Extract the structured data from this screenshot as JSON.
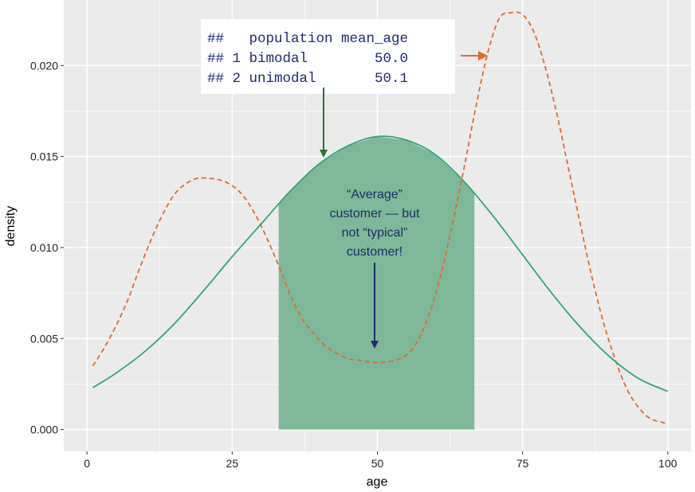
{
  "chart_data": {
    "type": "area",
    "xlabel": "age",
    "ylabel": "density",
    "xlim": [
      -4,
      104
    ],
    "ylim": [
      -0.0012,
      0.0236
    ],
    "x_ticks": [
      0,
      25,
      50,
      75,
      100
    ],
    "y_ticks": [
      0.0,
      0.005,
      0.01,
      0.015,
      0.02
    ],
    "x_tick_labels": [
      "0",
      "25",
      "50",
      "75",
      "100"
    ],
    "y_tick_labels": [
      "0.000",
      "0.005",
      "0.010",
      "0.015",
      "0.020"
    ],
    "grid": true,
    "series": [
      {
        "style": "dashed",
        "color": "#e4692a",
        "x": [
          1,
          3,
          5,
          7,
          9,
          11,
          13,
          15,
          17,
          19,
          21,
          23,
          25,
          27,
          29,
          31,
          33,
          35,
          37,
          39,
          41,
          43,
          45,
          47,
          49,
          51,
          53,
          55,
          57,
          59,
          61,
          63,
          65,
          67,
          69,
          71,
          73,
          75,
          77,
          79,
          81,
          83,
          85,
          87,
          89,
          91,
          93,
          95,
          97,
          99,
          100
        ],
        "y": [
          0.0035,
          0.0045,
          0.0057,
          0.0071,
          0.0088,
          0.0104,
          0.0118,
          0.0129,
          0.0135,
          0.0138,
          0.0138,
          0.0137,
          0.0134,
          0.0128,
          0.0118,
          0.0105,
          0.009,
          0.0074,
          0.0061,
          0.0053,
          0.0046,
          0.0042,
          0.0039,
          0.0038,
          0.0037,
          0.0037,
          0.0038,
          0.0041,
          0.0049,
          0.0064,
          0.0086,
          0.0114,
          0.0145,
          0.0178,
          0.0207,
          0.0226,
          0.0229,
          0.0228,
          0.0218,
          0.0198,
          0.0172,
          0.0142,
          0.0112,
          0.0083,
          0.0058,
          0.0038,
          0.0022,
          0.0012,
          0.0006,
          0.0004,
          0.0003
        ]
      },
      {
        "style": "solid",
        "color": "#2ea67a",
        "x": [
          1,
          5,
          10,
          15,
          20,
          25,
          30,
          35,
          40,
          45,
          50,
          55,
          60,
          65,
          70,
          75,
          80,
          85,
          90,
          95,
          100
        ],
        "y": [
          0.0023,
          0.0031,
          0.0043,
          0.0058,
          0.0076,
          0.0095,
          0.0113,
          0.0131,
          0.0146,
          0.0156,
          0.0161,
          0.0159,
          0.0151,
          0.0136,
          0.0117,
          0.0096,
          0.0075,
          0.0056,
          0.004,
          0.0028,
          0.0021
        ]
      }
    ],
    "shaded_region": {
      "x_start": 33,
      "x_end": 66.7,
      "under_series": 1,
      "color": "#7fb898"
    },
    "code_lines": [
      "##   population mean_age",
      "## 1 bimodal        50.0",
      "## 2 unimodal       50.1"
    ],
    "note_lines": [
      "“Average”",
      "customer — but",
      "not “typical”",
      "customer!"
    ],
    "colors": {
      "panel": "#ebebeb",
      "grid": "#ffffff",
      "note_arrow": "#1f2a6e",
      "green_arrow": "#2f6f3a",
      "orange_arrow": "#e4692a"
    }
  }
}
